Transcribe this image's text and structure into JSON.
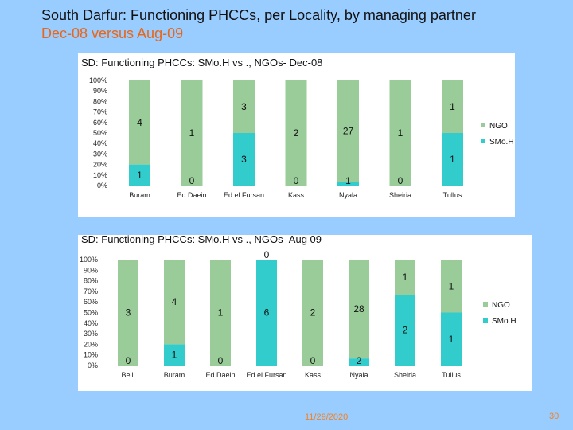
{
  "slide": {
    "title_line1": "South Darfur: Functioning PHCCs, per Locality, by managing partner",
    "title_line2": "Dec-08 versus Aug-09",
    "date": "11/29/2020",
    "page_number": "30"
  },
  "colors": {
    "smoh": "#33cccc",
    "ngo": "#99cc99",
    "title_accent": "#e8661a",
    "background": "#99ccff"
  },
  "chart_data": [
    {
      "type": "bar",
      "stacked": "percent",
      "title": "SD: Functioning PHCCs: SMo.H vs ., NGOs- Dec-08",
      "categories": [
        "Buram",
        "Ed Daein",
        "Ed el Fursan",
        "Kass",
        "Nyala",
        "Sheiria",
        "Tullus"
      ],
      "series": [
        {
          "name": "SMo.H",
          "values": [
            1,
            0,
            3,
            0,
            1,
            0,
            1
          ]
        },
        {
          "name": "NGO",
          "values": [
            4,
            1,
            3,
            2,
            27,
            1,
            1
          ]
        }
      ],
      "yticks": [
        "0%",
        "10%",
        "20%",
        "30%",
        "40%",
        "50%",
        "60%",
        "70%",
        "80%",
        "90%",
        "100%"
      ],
      "ylim": [
        0,
        100
      ],
      "legend": "right"
    },
    {
      "type": "bar",
      "stacked": "percent",
      "title": "SD: Functioning PHCCs: SMo.H vs ., NGOs- Aug 09",
      "categories": [
        "Belil",
        "Buram",
        "Ed Daein",
        "Ed el Fursan",
        "Kass",
        "Nyala",
        "Sheiria",
        "Tullus"
      ],
      "series": [
        {
          "name": "SMo.H",
          "values": [
            0,
            1,
            0,
            6,
            0,
            2,
            2,
            1
          ]
        },
        {
          "name": "NGO",
          "values": [
            3,
            4,
            1,
            0,
            2,
            28,
            1,
            1
          ]
        }
      ],
      "yticks": [
        "0%",
        "10%",
        "20%",
        "30%",
        "40%",
        "50%",
        "60%",
        "70%",
        "80%",
        "90%",
        "100%"
      ],
      "ylim": [
        0,
        100
      ],
      "legend": "right"
    }
  ]
}
